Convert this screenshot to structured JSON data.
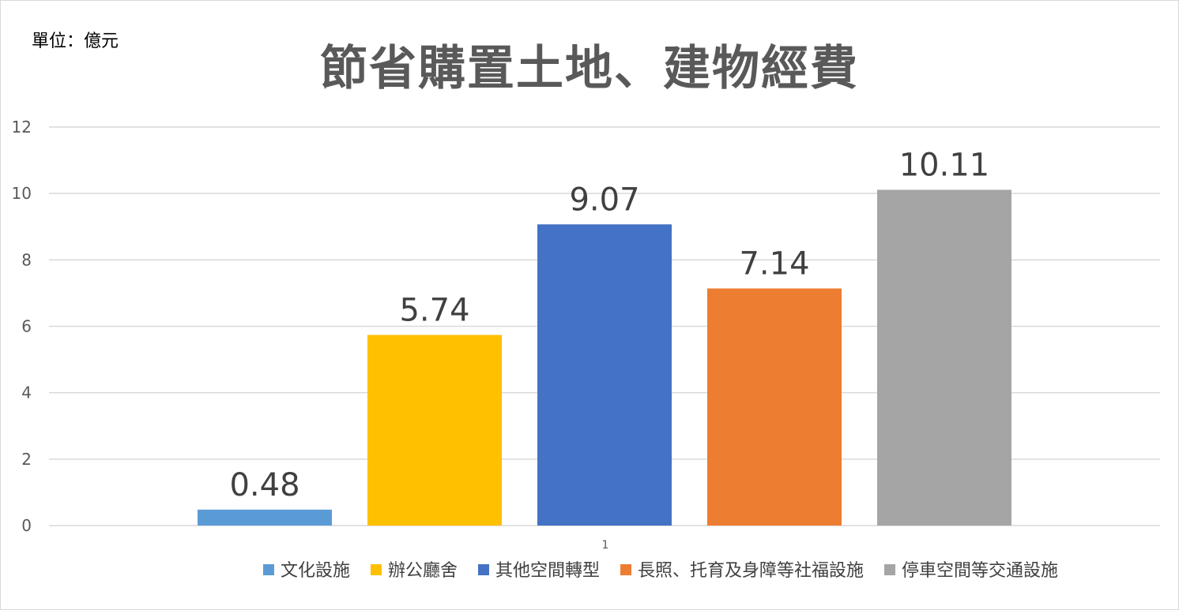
{
  "unit_label": "單位：億元",
  "chart_data": {
    "type": "bar",
    "title": "節省購置土地、建物經費",
    "xlabel": "",
    "ylabel": "",
    "categories": [
      "1"
    ],
    "ylim": [
      0,
      12
    ],
    "yticks": [
      0,
      2,
      4,
      6,
      8,
      10,
      12
    ],
    "grid": true,
    "legend_position": "bottom",
    "series": [
      {
        "name": "文化設施",
        "values": [
          0.48
        ],
        "label": "0.48",
        "color": "#5b9bd5"
      },
      {
        "name": "辦公廳舍",
        "values": [
          5.74
        ],
        "label": "5.74",
        "color": "#ffc000"
      },
      {
        "name": "其他空間轉型",
        "values": [
          9.07
        ],
        "label": "9.07",
        "color": "#4472c4"
      },
      {
        "name": "長照、托育及身障等社福設施",
        "values": [
          7.14
        ],
        "label": "7.14",
        "color": "#ed7d31"
      },
      {
        "name": "停車空間等交通設施",
        "values": [
          10.11
        ],
        "label": "10.11",
        "color": "#a5a5a5"
      }
    ]
  }
}
